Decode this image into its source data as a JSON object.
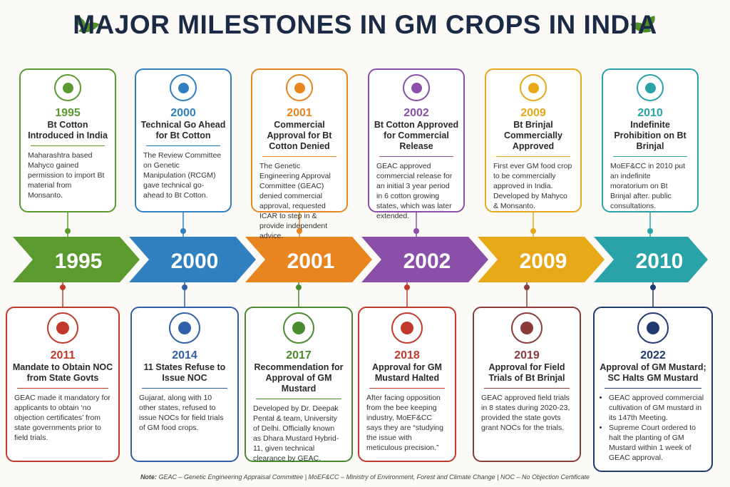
{
  "title": "MAJOR MILESTONES IN GM CROPS IN INDIA",
  "top": [
    {
      "year": "1995",
      "heading": "Bt Cotton Introduced in India",
      "body": "Maharashtra based Mahyco gained permission to import Bt material from Monsanto."
    },
    {
      "year": "2000",
      "heading": "Technical Go Ahead for Bt Cotton",
      "body": "The Review Committee on Genetic Manipulation (RCGM) gave technical go-ahead to Bt Cotton."
    },
    {
      "year": "2001",
      "heading": "Commercial Approval for Bt Cotton Denied",
      "body": "The Genetic Engineering Approval Committee (GEAC) denied commercial approval, requested ICAR to step in & provide independent advice."
    },
    {
      "year": "2002",
      "heading": "Bt Cotton Approved for Commercial Release",
      "body": "GEAC approved commercial release for an initial 3 year period in 6 cotton growing states, which was later extended."
    },
    {
      "year": "2009",
      "heading": "Bt Brinjal Commercially Approved",
      "body": "First ever GM food crop to be commercially approved in India. Developed by Mahyco & Monsanto."
    },
    {
      "year": "2010",
      "heading": "Indefinite Prohibition on Bt Brinjal",
      "body": "MoEF&CC in 2010 put an indefinite moratorium on Bt Brinjal after. public consultations."
    }
  ],
  "timeline": [
    "1995",
    "2000",
    "2001",
    "2002",
    "2009",
    "2010"
  ],
  "bottom": [
    {
      "year": "2011",
      "heading": "Mandate to Obtain NOC from State Govts",
      "body": "GEAC made it mandatory for applicants to obtain ‘no objection certificates’ from state governments prior to field trials."
    },
    {
      "year": "2014",
      "heading": "11 States Refuse to Issue NOC",
      "body": "Gujarat, along with 10 other states, refused to issue NOCs for field trials of GM food crops."
    },
    {
      "year": "2017",
      "heading": "Recommendation for Approval of GM Mustard",
      "body": "Developed by Dr. Deepak Pental & team, University of Delhi. Officially known as Dhara Mustard Hybrid-11, given technical clearance by GEAC."
    },
    {
      "year": "2018",
      "heading": "Approval for GM Mustard Halted",
      "body": "After facing opposition from the bee keeping industry, MoEF&CC says they are “studying the issue with meticulous precision.”"
    },
    {
      "year": "2019",
      "heading": "Approval for Field Trials of Bt Brinjal",
      "body": "GEAC approved field trials in 8 states during 2020-23, provided the state govts grant NOCs for the trials."
    },
    {
      "year": "2022",
      "heading": "Approval of GM Mustard; SC Halts GM Mustard",
      "bullets": [
        "GEAC approved commercial cultivation of GM mustard in its 147th Meeting.",
        "Supreme Court ordered to halt the planting of GM Mustard within 1 week of GEAC approval."
      ]
    }
  ],
  "note_label": "Note:",
  "note": "GEAC – Genetic Engineering Appraisal Committee | MoEF&CC – Ministry of Environment, Forest and Climate Change | NOC – No Objection Certificate"
}
